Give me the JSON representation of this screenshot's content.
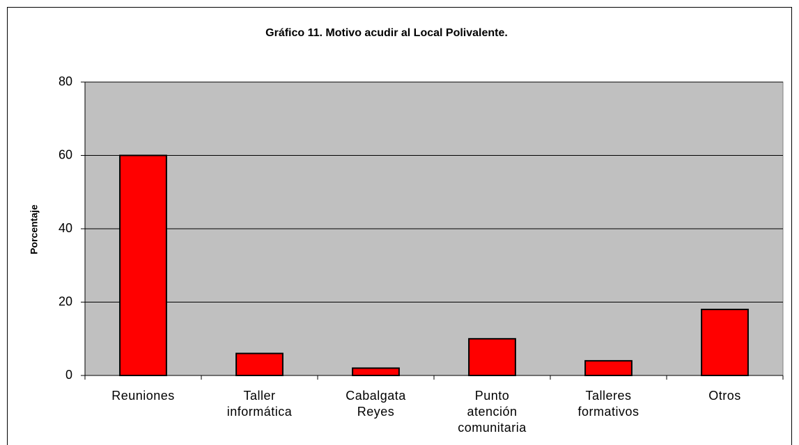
{
  "chart_data": {
    "type": "bar",
    "title": "Gráfico 11. Motivo acudir al Local Polivalente.",
    "y_label": "Porcentaje",
    "categories": [
      "Reuniones",
      "Taller informática",
      "Cabalgata Reyes",
      "Punto atención comunitaria",
      "Talleres formativos",
      "Otros"
    ],
    "values": [
      60,
      6,
      2,
      10,
      4,
      18
    ],
    "color": "#ff0000",
    "ylim": [
      0,
      80
    ],
    "yticks": [
      0,
      20,
      40,
      60,
      80
    ],
    "grid": true
  }
}
